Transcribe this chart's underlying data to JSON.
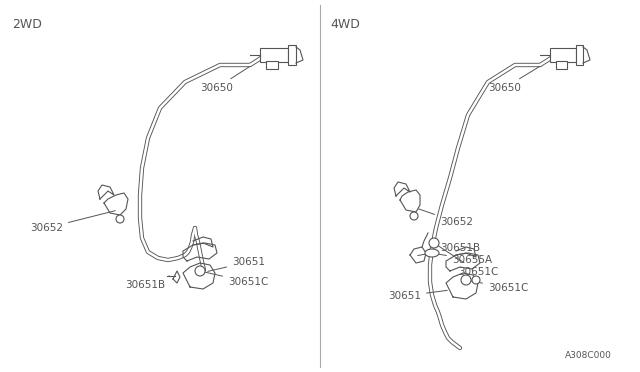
{
  "bg_color": "#ffffff",
  "line_color": "#555555",
  "text_color": "#555555",
  "divider_color": "#888888",
  "title_2wd": "2WD",
  "title_4wd": "4WD",
  "part_number_label": "A308C000",
  "figsize": [
    6.4,
    3.72
  ],
  "dpi": 100
}
